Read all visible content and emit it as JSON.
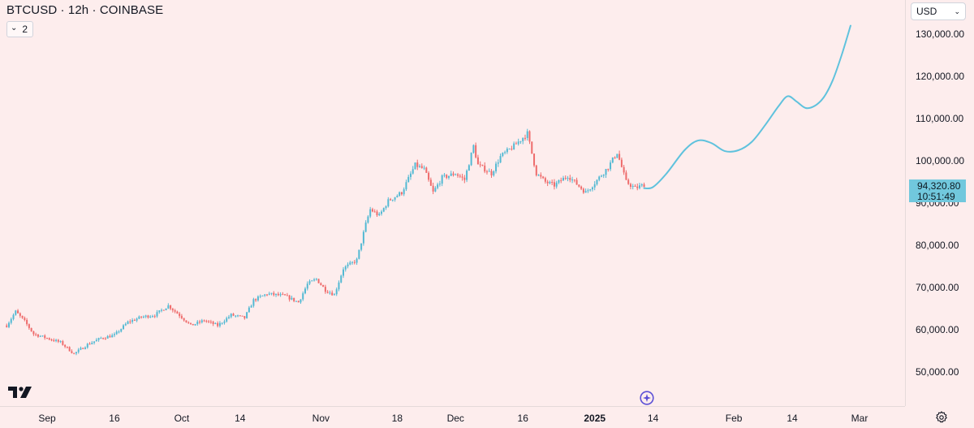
{
  "header": {
    "title": "BTCUSD · 12h · COINBASE",
    "indicator_count": "2"
  },
  "currency_select": {
    "value": "USD"
  },
  "last_price": {
    "price": "94,320.80",
    "countdown": "10:51:49"
  },
  "colors": {
    "up": "#52b9d3",
    "down": "#ee6b6b",
    "projection": "#5fc2dd",
    "background": "#fdeded",
    "price_tag": "#71c8dd"
  },
  "icons": {
    "logo": "tradingview-logo",
    "event": "event-marker-icon",
    "settings": "gear-icon"
  },
  "chart_data": {
    "type": "candlestick",
    "title": "BTCUSD · 12h · COINBASE",
    "y_ticks": [
      "130,000.00",
      "120,000.00",
      "110,000.00",
      "100,000.00",
      "90,000.00",
      "80,000.00",
      "70,000.00",
      "60,000.00",
      "50,000.00"
    ],
    "x_ticks": [
      {
        "label": "Sep",
        "date": "2024-09-01"
      },
      {
        "label": "16",
        "date": "2024-09-16"
      },
      {
        "label": "Oct",
        "date": "2024-10-01"
      },
      {
        "label": "14",
        "date": "2024-10-14"
      },
      {
        "label": "Nov",
        "date": "2024-11-01"
      },
      {
        "label": "18",
        "date": "2024-11-18"
      },
      {
        "label": "Dec",
        "date": "2024-12-01"
      },
      {
        "label": "16",
        "date": "2024-12-16"
      },
      {
        "label": "2025",
        "date": "2025-01-01",
        "bold": true
      },
      {
        "label": "14",
        "date": "2025-01-14"
      },
      {
        "label": "Feb",
        "date": "2025-02-01"
      },
      {
        "label": "14",
        "date": "2025-02-14"
      },
      {
        "label": "Mar",
        "date": "2025-03-01"
      }
    ],
    "close_path": [
      [
        "2024-08-23",
        61000
      ],
      [
        "2024-08-25",
        64300
      ],
      [
        "2024-08-27",
        62000
      ],
      [
        "2024-08-29",
        59000
      ],
      [
        "2024-09-01",
        58000
      ],
      [
        "2024-09-04",
        57000
      ],
      [
        "2024-09-07",
        54300
      ],
      [
        "2024-09-10",
        56500
      ],
      [
        "2024-09-13",
        58000
      ],
      [
        "2024-09-16",
        58700
      ],
      [
        "2024-09-19",
        61800
      ],
      [
        "2024-09-22",
        63000
      ],
      [
        "2024-09-25",
        63500
      ],
      [
        "2024-09-28",
        65700
      ],
      [
        "2024-10-01",
        63000
      ],
      [
        "2024-10-03",
        61000
      ],
      [
        "2024-10-06",
        62200
      ],
      [
        "2024-10-09",
        61000
      ],
      [
        "2024-10-12",
        63500
      ],
      [
        "2024-10-15",
        62800
      ],
      [
        "2024-10-17",
        67000
      ],
      [
        "2024-10-20",
        68500
      ],
      [
        "2024-10-24",
        68000
      ],
      [
        "2024-10-27",
        66500
      ],
      [
        "2024-10-29",
        70800
      ],
      [
        "2024-10-31",
        72000
      ],
      [
        "2024-11-02",
        69400
      ],
      [
        "2024-11-04",
        68300
      ],
      [
        "2024-11-06",
        74500
      ],
      [
        "2024-11-09",
        76500
      ],
      [
        "2024-11-11",
        85000
      ],
      [
        "2024-11-12",
        88500
      ],
      [
        "2024-11-14",
        87000
      ],
      [
        "2024-11-16",
        90500
      ],
      [
        "2024-11-19",
        92500
      ],
      [
        "2024-11-22",
        99000
      ],
      [
        "2024-11-24",
        98000
      ],
      [
        "2024-11-26",
        92500
      ],
      [
        "2024-11-28",
        96000
      ],
      [
        "2024-12-01",
        97000
      ],
      [
        "2024-12-03",
        95500
      ],
      [
        "2024-12-05",
        103500
      ],
      [
        "2024-12-06",
        99000
      ],
      [
        "2024-12-09",
        97000
      ],
      [
        "2024-12-11",
        101000
      ],
      [
        "2024-12-14",
        103500
      ],
      [
        "2024-12-16",
        105500
      ],
      [
        "2024-12-17",
        106500
      ],
      [
        "2024-12-19",
        97000
      ],
      [
        "2024-12-21",
        95000
      ],
      [
        "2024-12-23",
        94200
      ],
      [
        "2024-12-26",
        96500
      ],
      [
        "2024-12-28",
        94500
      ],
      [
        "2024-12-30",
        92500
      ],
      [
        "2025-01-01",
        94800
      ],
      [
        "2025-01-04",
        98500
      ],
      [
        "2025-01-06",
        102000
      ],
      [
        "2025-01-08",
        95000
      ],
      [
        "2025-01-10",
        93500
      ],
      [
        "2025-01-12",
        94320
      ]
    ],
    "projection": [
      [
        "2025-01-12",
        93500
      ],
      [
        "2025-01-14",
        93800
      ],
      [
        "2025-01-17",
        97000
      ],
      [
        "2025-01-21",
        102500
      ],
      [
        "2025-01-24",
        104800
      ],
      [
        "2025-01-27",
        104200
      ],
      [
        "2025-01-30",
        102300
      ],
      [
        "2025-02-02",
        102500
      ],
      [
        "2025-02-05",
        104500
      ],
      [
        "2025-02-08",
        108500
      ],
      [
        "2025-02-11",
        113000
      ],
      [
        "2025-02-13",
        115300
      ],
      [
        "2025-02-15",
        114000
      ],
      [
        "2025-02-17",
        112500
      ],
      [
        "2025-02-19",
        113000
      ],
      [
        "2025-02-21",
        115000
      ],
      [
        "2025-02-23",
        119000
      ],
      [
        "2025-02-25",
        125000
      ],
      [
        "2025-02-27",
        132000
      ]
    ]
  }
}
